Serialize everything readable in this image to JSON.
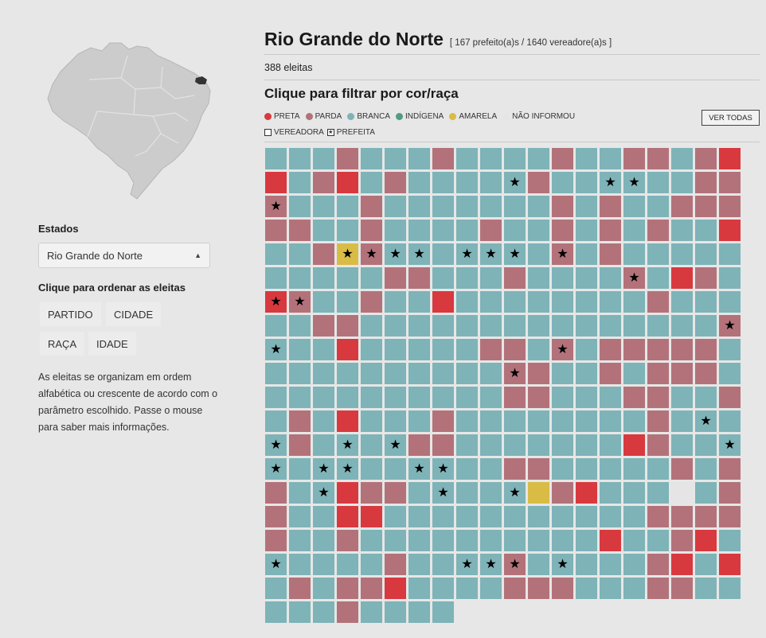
{
  "sidebar": {
    "states_label": "Estados",
    "state_selected": "Rio Grande do Norte",
    "sort_label": "Clique para ordenar as eleitas",
    "sort_buttons": [
      "PARTIDO",
      "CIDADE",
      "RAÇA",
      "IDADE"
    ],
    "help_text": "As eleitas se organizam em ordem alfabética ou crescente de acordo com o parâmetro escolhido. Passe o mouse para saber mais informações."
  },
  "main": {
    "title": "Rio Grande do Norte",
    "subtitle": "[ 167 prefeito(a)s / 1640 vereadore(a)s ]",
    "elected_count": "388 eleitas",
    "filter_heading": "Clique para filtrar por cor/raça",
    "legend": [
      {
        "label": "PRETA",
        "color": "#d8393f"
      },
      {
        "label": "PARDA",
        "color": "#b3727a"
      },
      {
        "label": "BRANCA",
        "color": "#7eb3b8"
      },
      {
        "label": "INDÍGENA",
        "color": "#4f9c84"
      },
      {
        "label": "AMARELA",
        "color": "#d9bc45"
      },
      {
        "label": "NÃO INFORMOU",
        "color": "#e5e5e5"
      }
    ],
    "see_all": "VER TODAS",
    "role_legend": [
      {
        "label": "VEREADORA",
        "checked": false
      },
      {
        "label": "PREFEITA",
        "checked": true
      }
    ]
  },
  "grid": {
    "columns": 20,
    "total": 388,
    "colors": {
      "P": "#d8393f",
      "D": "#b3727a",
      "B": "#7eb3b8",
      "A": "#d9bc45",
      "N": "#e5e5e5"
    },
    "rows": [
      "BBBDBBBDBBBBDBBDDBDP",
      "PBDPBDBBBBBDBBBBBBDD",
      "DBBBDBBBBBBBDBDBBDDD",
      "DDBBDBBBBDBBDBDBDBBP",
      "BBDADBBBBBBBDBDBBBBB",
      "BBBBBDDBBBDBBBBDBPDB",
      "PDBBDBBPBBBBBBBBDBBB",
      "BBDDBBBBBBBBBBBBBBBD",
      "BBBPBBBBBDDBDBDDDDDB",
      "BBBBBBBBBBDDBBDBDDDB",
      "BBBBBBBBBBDDBBBDDBBD",
      "BDBPBBBDBBBBBBBBDBBB",
      "BDBBBBDDBBBBBBBPDBBB",
      "BBBBBBBBBBDDBBBBBDBD",
      "DBBPDDBBBBBADPBBBNBD",
      "DBBPPBBBBBBBBBBBDDDD",
      "DBBDBBBBBBBBBBPBBDPB",
      "BBBBBDBBBBDBBBBBDPBP",
      "BDBDDPBBBBDDDBBBDDBB",
      "BBBDBBBB"
    ],
    "mayor_cells": [
      [
        1,
        10
      ],
      [
        1,
        14
      ],
      [
        1,
        15
      ],
      [
        2,
        0
      ],
      [
        4,
        3
      ],
      [
        4,
        4
      ],
      [
        4,
        5
      ],
      [
        4,
        6
      ],
      [
        4,
        8
      ],
      [
        4,
        9
      ],
      [
        4,
        10
      ],
      [
        4,
        12
      ],
      [
        5,
        15
      ],
      [
        6,
        0
      ],
      [
        6,
        1
      ],
      [
        7,
        19
      ],
      [
        8,
        0
      ],
      [
        8,
        12
      ],
      [
        9,
        10
      ],
      [
        11,
        18
      ],
      [
        12,
        0
      ],
      [
        12,
        3
      ],
      [
        12,
        5
      ],
      [
        12,
        19
      ],
      [
        13,
        0
      ],
      [
        13,
        2
      ],
      [
        13,
        3
      ],
      [
        13,
        6
      ],
      [
        13,
        7
      ],
      [
        14,
        2
      ],
      [
        14,
        7
      ],
      [
        14,
        10
      ],
      [
        17,
        0
      ],
      [
        17,
        8
      ],
      [
        17,
        9
      ],
      [
        17,
        10
      ],
      [
        17,
        12
      ]
    ]
  }
}
